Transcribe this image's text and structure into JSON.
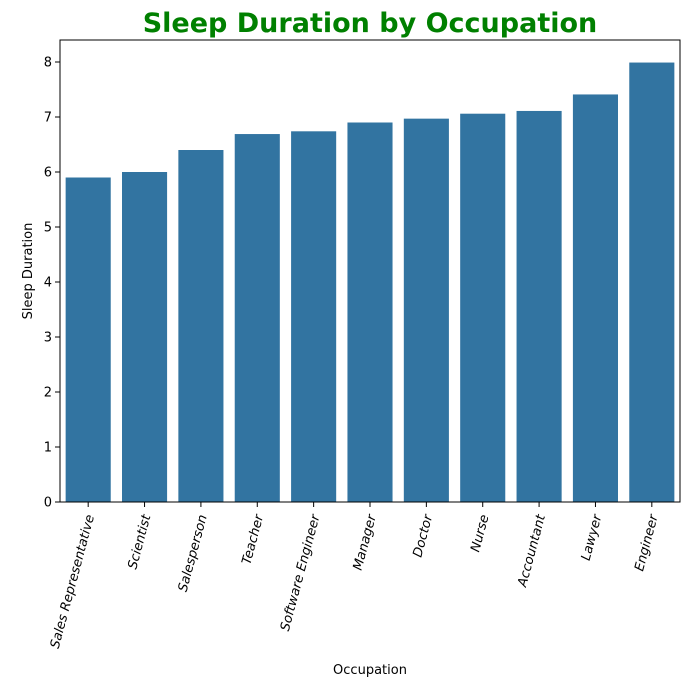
{
  "chart_data": {
    "type": "bar",
    "title": "Sleep Duration by Occupation",
    "title_color": "#008000",
    "xlabel": "Occupation",
    "ylabel": "Sleep Duration",
    "categories": [
      "Sales Representative",
      "Scientist",
      "Salesperson",
      "Teacher",
      "Software Engineer",
      "Manager",
      "Doctor",
      "Nurse",
      "Accountant",
      "Lawyer",
      "Engineer"
    ],
    "values": [
      5.9,
      6.0,
      6.4,
      6.69,
      6.74,
      6.9,
      6.97,
      7.06,
      7.11,
      7.41,
      7.99
    ],
    "ylim": [
      0,
      8.4
    ],
    "yticks": [
      "0",
      "1",
      "2",
      "3",
      "4",
      "5",
      "6",
      "7",
      "8"
    ],
    "xtick_rotation_deg": 75,
    "bar_color": "#3274a1",
    "grid": false,
    "legend": "none"
  }
}
